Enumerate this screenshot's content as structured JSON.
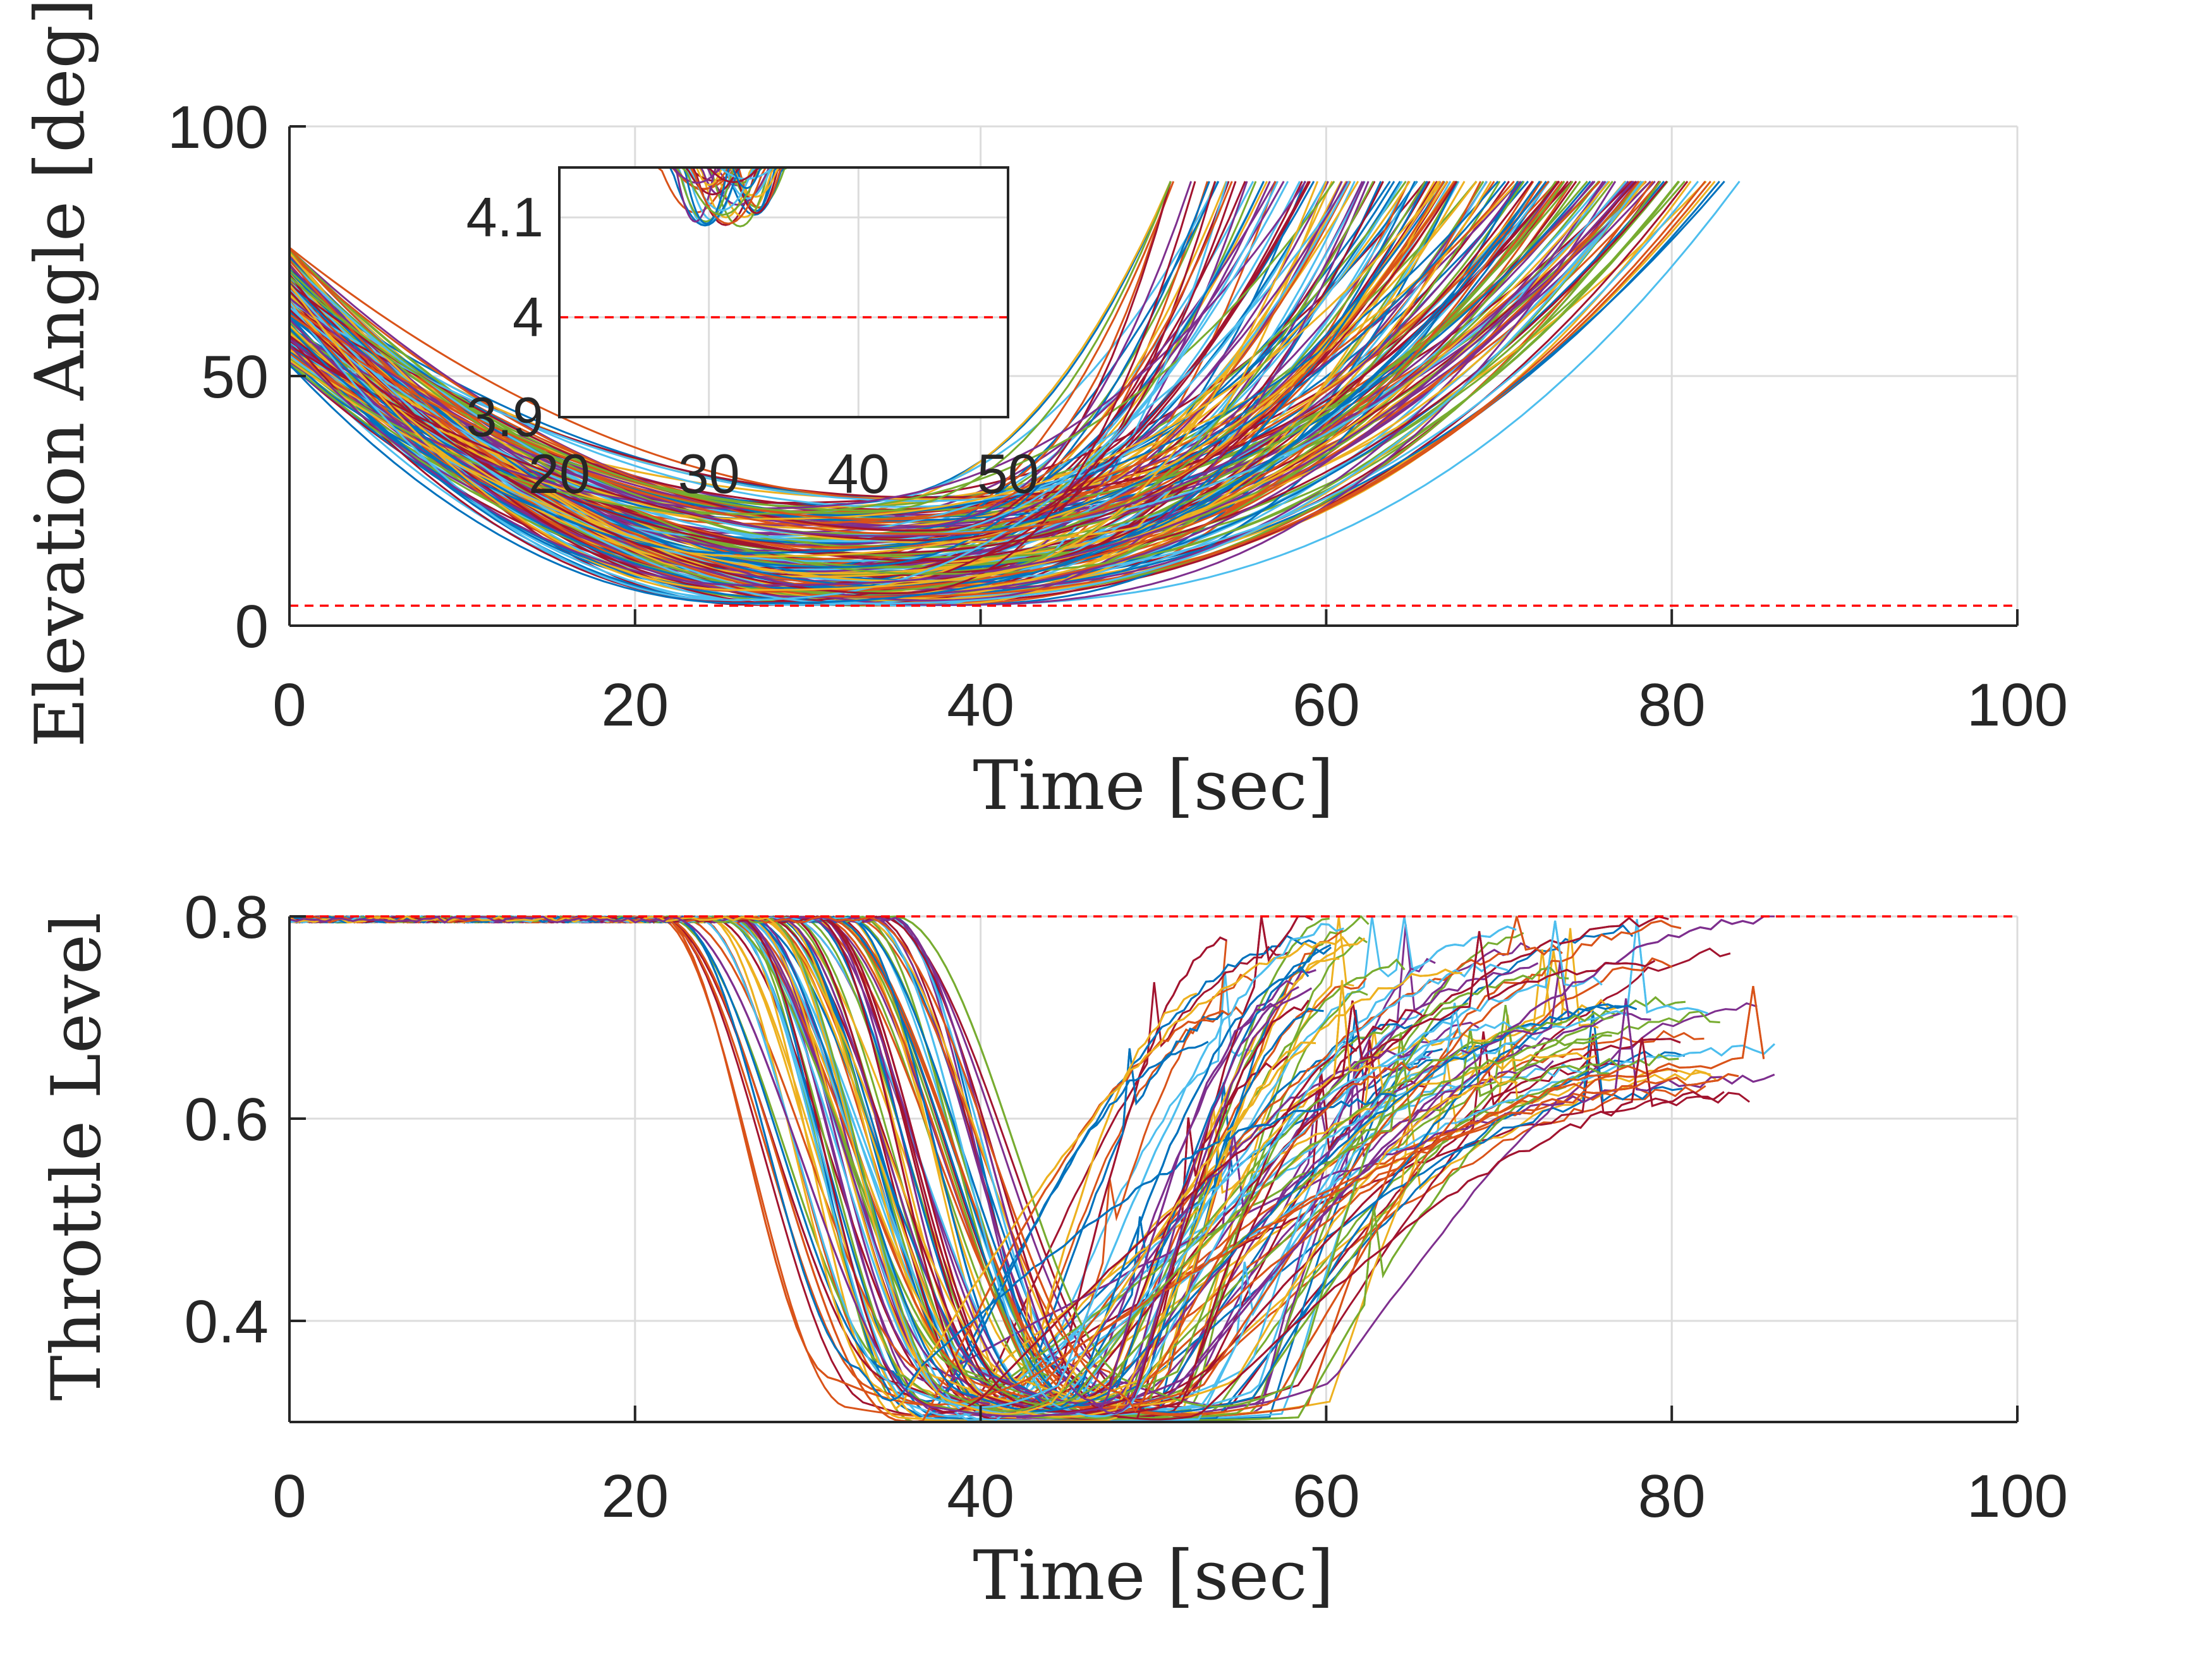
{
  "chart_data": [
    {
      "type": "line",
      "name": "elevation-angle",
      "xlabel": "Time [sec]",
      "ylabel": "Elevation Angle [deg]",
      "xlim": [
        0,
        100
      ],
      "ylim": [
        0,
        100
      ],
      "xticks": [
        "0",
        "20",
        "40",
        "60",
        "80",
        "100"
      ],
      "yticks": [
        "0",
        "50",
        "100"
      ],
      "grid": true,
      "reference_lines": [
        {
          "y": 4,
          "color": "#ff0000",
          "style": "dashed"
        }
      ],
      "trajectories": {
        "count": 200,
        "start_min": 52,
        "start_max": 76,
        "min_value_range": [
          4,
          26
        ],
        "min_time_range": [
          25,
          38
        ],
        "end_value": 89,
        "end_time_range": [
          51,
          89
        ]
      },
      "inset": {
        "xlim": [
          20,
          50
        ],
        "ylim": [
          3.9,
          4.15
        ],
        "xticks": [
          "20",
          "30",
          "40",
          "50"
        ],
        "yticks": [
          "3.9",
          "4",
          "4.1"
        ],
        "reference_line": 4,
        "dip_time_range": [
          28,
          34
        ],
        "dip_min": 4.09
      }
    },
    {
      "type": "line",
      "name": "throttle-level",
      "xlabel": "Time [sec]",
      "ylabel": "Throttle Level",
      "xlim": [
        0,
        100
      ],
      "ylim": [
        0.3,
        0.8
      ],
      "xticks": [
        "0",
        "20",
        "40",
        "60",
        "80",
        "100"
      ],
      "yticks": [
        "0.4",
        "0.6",
        "0.8"
      ],
      "grid": true,
      "reference_lines": [
        {
          "y": 0.8,
          "color": "#ff0000",
          "style": "dashed"
        },
        {
          "y": 0.3,
          "color": "#ff0000",
          "style": "dashed"
        }
      ],
      "trajectories": {
        "count": 200,
        "hold_value": 0.8,
        "drop_start_range": [
          21,
          35
        ],
        "floor_value": 0.3,
        "recovery_end_value_range": [
          0.62,
          0.8
        ],
        "end_time_range": [
          51,
          89
        ]
      }
    }
  ],
  "palette": [
    "#0072BD",
    "#D95319",
    "#EDB120",
    "#7E2F8E",
    "#77AC30",
    "#4DBEEE",
    "#A2142F"
  ]
}
